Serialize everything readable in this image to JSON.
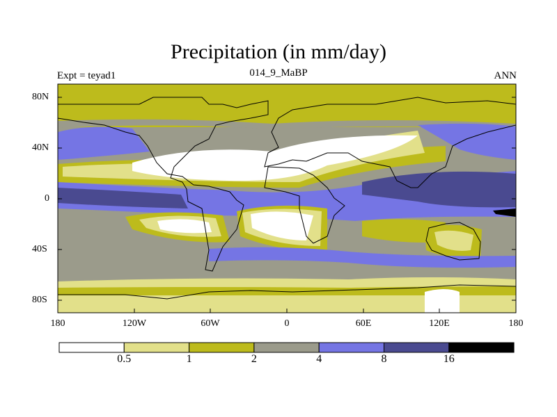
{
  "title": "Precipitation (in mm/day)",
  "subtitle_left": "Expt = teyad1",
  "subtitle_center": "014_9_MaBP",
  "subtitle_right": "ANN",
  "lat_ticks": [
    "80N",
    "40N",
    "0",
    "40S",
    "80S"
  ],
  "lon_ticks": [
    "180",
    "120W",
    "60W",
    "0",
    "60E",
    "120E",
    "180"
  ],
  "colorbar": {
    "boundaries": [
      "0.5",
      "1",
      "2",
      "4",
      "8",
      "16"
    ],
    "colors": [
      "#ffffff",
      "#e2e08a",
      "#bdbb1c",
      "#9b9b8b",
      "#7575e4",
      "#4a4a90",
      "#000000"
    ]
  }
}
